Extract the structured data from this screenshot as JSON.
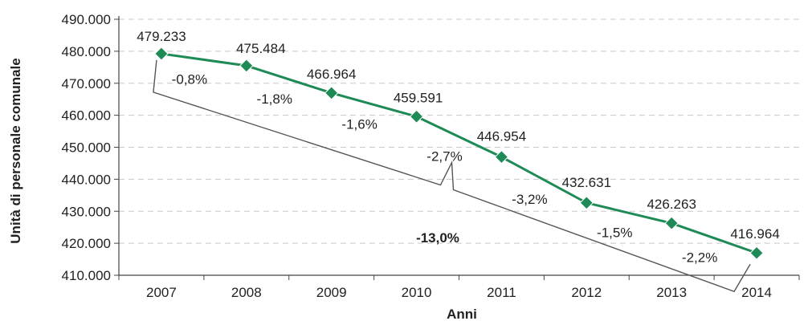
{
  "chart_data": {
    "type": "line",
    "title": "",
    "xlabel": "Anni",
    "ylabel": "Unità di personale comunale",
    "categories": [
      "2007",
      "2008",
      "2009",
      "2010",
      "2011",
      "2012",
      "2013",
      "2014"
    ],
    "values": [
      479233,
      475484,
      466964,
      459591,
      446954,
      432631,
      426263,
      416964
    ],
    "value_labels": [
      "479.233",
      "475.484",
      "466.964",
      "459.591",
      "446.954",
      "432.631",
      "426.263",
      "416.964"
    ],
    "pct_changes": [
      "-0,8%",
      "-1,8%",
      "-1,6%",
      "-2,7%",
      "-3,2%",
      "-1,5%",
      "-2,2%"
    ],
    "total_change": "-13,0%",
    "y_ticks": [
      "410.000",
      "420.000",
      "430.000",
      "440.000",
      "450.000",
      "460.000",
      "470.000",
      "480.000",
      "490.000"
    ],
    "y_tick_values": [
      410000,
      420000,
      430000,
      440000,
      450000,
      460000,
      470000,
      480000,
      490000
    ],
    "ylim": [
      410000,
      490000
    ],
    "grid": "horizontal dashed",
    "legend": "none",
    "colors": {
      "series": "#1e8a55",
      "marker": "#1e8a55",
      "grid": "#c8c8c8",
      "axis": "#444444",
      "bracket": "#555555"
    }
  }
}
